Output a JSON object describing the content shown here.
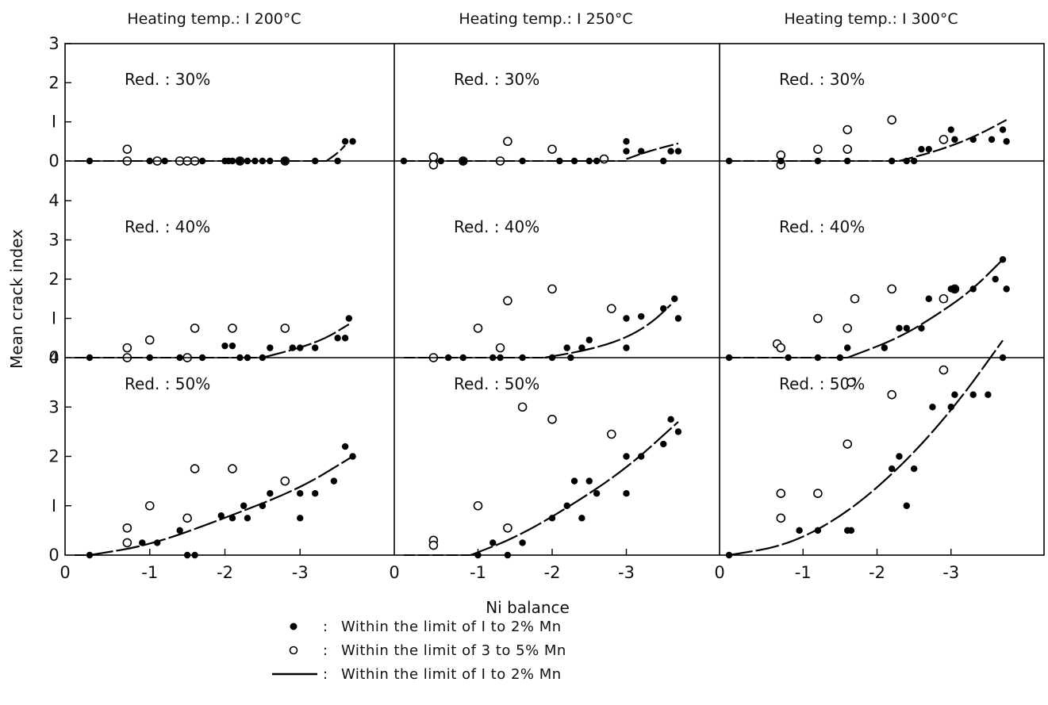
{
  "chart_data": {
    "type": "scatter",
    "xlabel": "Ni balance",
    "ylabel": "Mean crack index",
    "columns": [
      {
        "title": "Heating temp.: I 200°C"
      },
      {
        "title": "Heating temp.: I 250°C"
      },
      {
        "title": "Heating temp.: I 300°C"
      }
    ],
    "rows": [
      {
        "label": "Red. : 30%",
        "ylim": [
          0,
          3
        ],
        "yticks": [
          "0",
          "I",
          "2",
          "3"
        ]
      },
      {
        "label": "Red. : 40%",
        "ylim": [
          0,
          4
        ],
        "yticks": [
          "0",
          "I",
          "2",
          "3",
          "4"
        ]
      },
      {
        "label": "Red. : 50%",
        "ylim": [
          0,
          4
        ],
        "yticks": [
          "0",
          "I",
          "2",
          "3",
          "4"
        ]
      }
    ],
    "xlim": [
      0,
      -4
    ],
    "xticks": [
      "0",
      "-1",
      "-2",
      "-3"
    ],
    "panels": [
      {
        "column": 0,
        "row": 0,
        "filled": [
          [
            -0.2,
            0
          ],
          [
            -1,
            0
          ],
          [
            -1.2,
            0
          ],
          [
            -1.7,
            0
          ],
          [
            -2,
            0
          ],
          [
            -2.05,
            0
          ],
          [
            -2.1,
            0
          ],
          [
            -2.2,
            0
          ],
          [
            -2.3,
            0
          ],
          [
            -2.4,
            0
          ],
          [
            -2.5,
            0
          ],
          [
            -2.6,
            0
          ],
          [
            -2.8,
            0
          ],
          [
            -3.2,
            0
          ],
          [
            -3.5,
            0
          ],
          [
            -3.6,
            0.5
          ],
          [
            -3.7,
            0.5
          ]
        ],
        "hollow": [
          [
            -0.7,
            0.3
          ],
          [
            -0.7,
            0
          ],
          [
            -1.1,
            0
          ],
          [
            -1.4,
            0
          ],
          [
            -1.5,
            0
          ],
          [
            -1.6,
            0
          ],
          [
            -2.2,
            0
          ],
          [
            -2.8,
            0
          ]
        ],
        "curve": [
          [
            -3.35,
            0
          ],
          [
            -3.5,
            0.2
          ],
          [
            -3.6,
            0.4
          ]
        ]
      },
      {
        "column": 1,
        "row": 0,
        "filled": [
          [
            0,
            0
          ],
          [
            -0.5,
            0
          ],
          [
            -0.8,
            0
          ],
          [
            -1.6,
            0
          ],
          [
            -2.1,
            0
          ],
          [
            -2.3,
            0
          ],
          [
            -2.5,
            0
          ],
          [
            -2.6,
            0
          ],
          [
            -3,
            0.5
          ],
          [
            -3,
            0.25
          ],
          [
            -3.2,
            0.25
          ],
          [
            -3.5,
            0
          ],
          [
            -3.6,
            0.25
          ],
          [
            -3.7,
            0.25
          ]
        ],
        "hollow": [
          [
            -0.4,
            0.1
          ],
          [
            -0.4,
            -0.1
          ],
          [
            -0.8,
            0
          ],
          [
            -1.3,
            0
          ],
          [
            -1.4,
            0.5
          ],
          [
            -2,
            0.3
          ],
          [
            -2.7,
            0.05
          ]
        ],
        "curve": [
          [
            -3,
            0.05
          ],
          [
            -3.3,
            0.25
          ],
          [
            -3.7,
            0.45
          ]
        ]
      },
      {
        "column": 2,
        "row": 0,
        "filled": [
          [
            0,
            0
          ],
          [
            -0.7,
            0
          ],
          [
            -1.2,
            0
          ],
          [
            -1.6,
            0
          ],
          [
            -2.2,
            0
          ],
          [
            -2.4,
            0
          ],
          [
            -2.5,
            0
          ],
          [
            -2.6,
            0.3
          ],
          [
            -2.7,
            0.3
          ],
          [
            -3,
            0.8
          ],
          [
            -3.05,
            0.55
          ],
          [
            -3.3,
            0.55
          ],
          [
            -3.55,
            0.55
          ],
          [
            -3.7,
            0.8
          ],
          [
            -3.75,
            0.5
          ]
        ],
        "hollow": [
          [
            -0.7,
            0.15
          ],
          [
            -0.7,
            -0.1
          ],
          [
            -1.2,
            0.3
          ],
          [
            -1.6,
            0.3
          ],
          [
            -1.6,
            0.8
          ],
          [
            -2.2,
            1.05
          ],
          [
            -2.9,
            0.55
          ]
        ],
        "curve": [
          [
            -2.3,
            0
          ],
          [
            -2.8,
            0.25
          ],
          [
            -3.3,
            0.6
          ],
          [
            -3.75,
            1.05
          ]
        ]
      },
      {
        "column": 0,
        "row": 1,
        "filled": [
          [
            -0.2,
            0
          ],
          [
            -1,
            0
          ],
          [
            -1.4,
            0
          ],
          [
            -1.7,
            0
          ],
          [
            -2,
            0.3
          ],
          [
            -2.1,
            0.3
          ],
          [
            -2.2,
            0
          ],
          [
            -2.3,
            0
          ],
          [
            -2.5,
            0
          ],
          [
            -2.6,
            0.25
          ],
          [
            -2.9,
            0.25
          ],
          [
            -3,
            0.25
          ],
          [
            -3.2,
            0.25
          ],
          [
            -3.5,
            0.5
          ],
          [
            -3.6,
            0.5
          ],
          [
            -3.65,
            1
          ]
        ],
        "hollow": [
          [
            -0.7,
            0.25
          ],
          [
            -0.7,
            0
          ],
          [
            -1,
            0.45
          ],
          [
            -1.5,
            0
          ],
          [
            -1.6,
            0.75
          ],
          [
            -2.1,
            0.75
          ],
          [
            -2.8,
            0.75
          ]
        ],
        "curve": [
          [
            -2.5,
            0
          ],
          [
            -3,
            0.25
          ],
          [
            -3.35,
            0.5
          ],
          [
            -3.65,
            0.85
          ]
        ]
      },
      {
        "column": 1,
        "row": 1,
        "filled": [
          [
            -0.6,
            0
          ],
          [
            -0.8,
            0
          ],
          [
            -1.2,
            0
          ],
          [
            -1.3,
            0
          ],
          [
            -1.6,
            0
          ],
          [
            -2,
            0
          ],
          [
            -2.2,
            0.25
          ],
          [
            -2.25,
            0
          ],
          [
            -2.4,
            0.25
          ],
          [
            -2.5,
            0.45
          ],
          [
            -3,
            1
          ],
          [
            -3,
            0.25
          ],
          [
            -3.2,
            1.05
          ],
          [
            -3.5,
            1.25
          ],
          [
            -3.65,
            1.5
          ],
          [
            -3.7,
            1
          ]
        ],
        "hollow": [
          [
            -0.4,
            0
          ],
          [
            -1,
            0.75
          ],
          [
            -1.3,
            0.25
          ],
          [
            -1.4,
            1.45
          ],
          [
            -2,
            1.75
          ],
          [
            -2.8,
            1.25
          ]
        ],
        "curve": [
          [
            -1.9,
            0
          ],
          [
            -2.5,
            0.2
          ],
          [
            -3,
            0.5
          ],
          [
            -3.35,
            0.9
          ],
          [
            -3.6,
            1.35
          ]
        ]
      },
      {
        "column": 2,
        "row": 1,
        "filled": [
          [
            0,
            0
          ],
          [
            -0.8,
            0
          ],
          [
            -1.2,
            0
          ],
          [
            -1.5,
            0
          ],
          [
            -1.6,
            0.25
          ],
          [
            -2.1,
            0.25
          ],
          [
            -2.3,
            0.75
          ],
          [
            -2.4,
            0.75
          ],
          [
            -2.6,
            0.75
          ],
          [
            -2.7,
            1.5
          ],
          [
            -3,
            1.75
          ],
          [
            -3.05,
            1.75
          ],
          [
            -3.3,
            1.75
          ],
          [
            -3.6,
            2
          ],
          [
            -3.7,
            2.5
          ],
          [
            -3.75,
            1.75
          ]
        ],
        "hollow": [
          [
            -0.65,
            0.35
          ],
          [
            -0.7,
            0.25
          ],
          [
            -1.2,
            1
          ],
          [
            -1.6,
            0.75
          ],
          [
            -1.7,
            1.5
          ],
          [
            -2.2,
            1.75
          ],
          [
            -2.9,
            1.5
          ],
          [
            -3.05,
            1.75
          ]
        ],
        "curve": [
          [
            -1.6,
            0
          ],
          [
            -2.3,
            0.5
          ],
          [
            -2.9,
            1.2
          ],
          [
            -3.3,
            1.75
          ],
          [
            -3.7,
            2.5
          ]
        ]
      },
      {
        "column": 0,
        "row": 2,
        "filled": [
          [
            -0.2,
            0
          ],
          [
            -0.9,
            0.25
          ],
          [
            -1.1,
            0.25
          ],
          [
            -1.4,
            0.5
          ],
          [
            -1.5,
            0
          ],
          [
            -1.6,
            0
          ],
          [
            -1.95,
            0.8
          ],
          [
            -2.1,
            0.75
          ],
          [
            -2.25,
            1
          ],
          [
            -2.3,
            0.75
          ],
          [
            -2.5,
            1
          ],
          [
            -2.6,
            1.25
          ],
          [
            -3,
            0.75
          ],
          [
            -3,
            1.25
          ],
          [
            -3.2,
            1.25
          ],
          [
            -3.45,
            1.5
          ],
          [
            -3.6,
            2.2
          ],
          [
            -3.7,
            2
          ]
        ],
        "hollow": [
          [
            -0.7,
            0.55
          ],
          [
            -0.7,
            0.25
          ],
          [
            -1,
            1
          ],
          [
            -1.5,
            0.75
          ],
          [
            -1.6,
            1.75
          ],
          [
            -2.1,
            1.75
          ],
          [
            -2.8,
            1.5
          ]
        ],
        "curve": [
          [
            -0.2,
            0
          ],
          [
            -1,
            0.2
          ],
          [
            -2,
            0.75
          ],
          [
            -3,
            1.35
          ],
          [
            -3.7,
            2
          ]
        ]
      },
      {
        "column": 1,
        "row": 2,
        "filled": [
          [
            -1,
            0
          ],
          [
            -1.2,
            0.25
          ],
          [
            -1.4,
            0
          ],
          [
            -1.6,
            0.25
          ],
          [
            -2,
            0.75
          ],
          [
            -2.2,
            1
          ],
          [
            -2.3,
            1.5
          ],
          [
            -2.4,
            0.75
          ],
          [
            -2.5,
            1.5
          ],
          [
            -2.6,
            1.25
          ],
          [
            -3,
            1.25
          ],
          [
            -3,
            2
          ],
          [
            -3.2,
            2
          ],
          [
            -3.5,
            2.25
          ],
          [
            -3.6,
            2.75
          ],
          [
            -3.7,
            2.5
          ]
        ],
        "hollow": [
          [
            -0.4,
            0.3
          ],
          [
            -0.4,
            0.2
          ],
          [
            -1,
            1
          ],
          [
            -1.4,
            0.55
          ],
          [
            -1.6,
            3
          ],
          [
            -2,
            2.75
          ],
          [
            -2.8,
            2.45
          ]
        ],
        "curve": [
          [
            -0.9,
            0
          ],
          [
            -1.5,
            0.35
          ],
          [
            -2.2,
            0.95
          ],
          [
            -3,
            1.75
          ],
          [
            -3.7,
            2.7
          ]
        ]
      },
      {
        "column": 2,
        "row": 2,
        "filled": [
          [
            0,
            0
          ],
          [
            -0.95,
            0.5
          ],
          [
            -1.2,
            0.5
          ],
          [
            -1.6,
            0.5
          ],
          [
            -1.65,
            0.5
          ],
          [
            -2.2,
            1.75
          ],
          [
            -2.3,
            2
          ],
          [
            -2.4,
            1
          ],
          [
            -2.5,
            1.75
          ],
          [
            -2.75,
            3
          ],
          [
            -3,
            3
          ],
          [
            -3.05,
            3.25
          ],
          [
            -3.3,
            3.25
          ],
          [
            -3.5,
            3.25
          ],
          [
            -3.7,
            4
          ]
        ],
        "hollow": [
          [
            -0.7,
            1.25
          ],
          [
            -0.7,
            0.75
          ],
          [
            -1.2,
            1.25
          ],
          [
            -1.6,
            2.25
          ],
          [
            -1.65,
            3.5
          ],
          [
            -2.2,
            3.25
          ],
          [
            -2.9,
            3.75
          ]
        ],
        "curve": [
          [
            0,
            0
          ],
          [
            -0.8,
            0.2
          ],
          [
            -1.6,
            0.85
          ],
          [
            -2.4,
            1.9
          ],
          [
            -3.1,
            3.1
          ],
          [
            -3.7,
            4.35
          ]
        ]
      }
    ],
    "legend": {
      "filled": "Within the limit of I to 2% Mn",
      "hollow": "Within the limit of 3 to 5% Mn",
      "line": "Within the limit of I to 2% Mn"
    }
  }
}
